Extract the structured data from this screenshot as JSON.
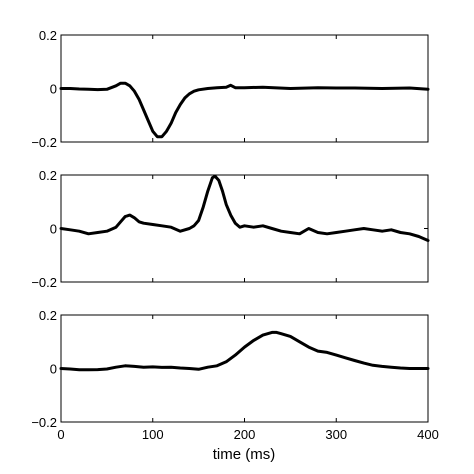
{
  "chart_data": [
    {
      "type": "line",
      "xlim": [
        0,
        400
      ],
      "ylim": [
        -0.2,
        0.2
      ],
      "yticks": [
        0.2,
        0,
        -0.2
      ],
      "ytick_labels": [
        "0.2",
        "0",
        "−0.2"
      ],
      "grid": false,
      "series": [
        {
          "x": [
            0,
            10,
            20,
            30,
            40,
            50,
            60,
            65,
            70,
            75,
            80,
            85,
            90,
            95,
            100,
            105,
            110,
            115,
            120,
            125,
            130,
            135,
            140,
            145,
            150,
            160,
            170,
            180,
            185,
            190,
            200,
            220,
            250,
            280,
            300,
            320,
            350,
            380,
            400
          ],
          "y": [
            0.0,
            0.0,
            -0.002,
            -0.003,
            -0.004,
            -0.003,
            0.01,
            0.02,
            0.02,
            0.01,
            -0.01,
            -0.04,
            -0.08,
            -0.12,
            -0.16,
            -0.18,
            -0.18,
            -0.16,
            -0.13,
            -0.09,
            -0.06,
            -0.035,
            -0.02,
            -0.01,
            -0.005,
            0.0,
            0.003,
            0.005,
            0.012,
            0.003,
            0.003,
            0.005,
            0.0,
            0.003,
            0.002,
            0.002,
            0.0,
            0.002,
            -0.003
          ]
        }
      ]
    },
    {
      "type": "line",
      "xlim": [
        0,
        400
      ],
      "ylim": [
        -0.2,
        0.2
      ],
      "yticks": [
        0.2,
        0,
        -0.2
      ],
      "ytick_labels": [
        "0.2",
        "0",
        "−0.2"
      ],
      "grid": false,
      "series": [
        {
          "x": [
            0,
            10,
            20,
            30,
            40,
            50,
            60,
            65,
            70,
            75,
            80,
            85,
            90,
            100,
            110,
            120,
            130,
            140,
            145,
            150,
            155,
            160,
            165,
            168,
            172,
            176,
            180,
            185,
            190,
            195,
            200,
            210,
            220,
            230,
            240,
            250,
            260,
            270,
            280,
            290,
            300,
            310,
            320,
            330,
            340,
            350,
            360,
            370,
            380,
            390,
            400
          ],
          "y": [
            0.0,
            -0.005,
            -0.01,
            -0.02,
            -0.015,
            -0.01,
            0.005,
            0.025,
            0.045,
            0.05,
            0.04,
            0.025,
            0.02,
            0.015,
            0.01,
            0.005,
            -0.01,
            0.0,
            0.01,
            0.03,
            0.08,
            0.14,
            0.19,
            0.195,
            0.18,
            0.14,
            0.09,
            0.05,
            0.02,
            0.005,
            0.01,
            0.005,
            0.01,
            0.0,
            -0.01,
            -0.015,
            -0.02,
            0.0,
            -0.015,
            -0.02,
            -0.015,
            -0.01,
            -0.005,
            0.0,
            -0.005,
            -0.01,
            -0.005,
            -0.015,
            -0.02,
            -0.03,
            -0.045
          ]
        }
      ]
    },
    {
      "type": "line",
      "xlim": [
        0,
        400
      ],
      "ylim": [
        -0.2,
        0.2
      ],
      "yticks": [
        0.2,
        0,
        -0.2
      ],
      "ytick_labels": [
        "0.2",
        "0",
        "−0.2"
      ],
      "xticks": [
        0,
        100,
        200,
        300,
        400
      ],
      "xtick_labels": [
        "0",
        "100",
        "200",
        "300",
        "400"
      ],
      "xlabel": "time (ms)",
      "grid": false,
      "series": [
        {
          "x": [
            0,
            10,
            20,
            30,
            40,
            50,
            60,
            70,
            80,
            90,
            100,
            110,
            120,
            130,
            140,
            150,
            160,
            170,
            180,
            190,
            200,
            210,
            220,
            230,
            235,
            240,
            250,
            260,
            270,
            280,
            290,
            300,
            310,
            320,
            330,
            340,
            350,
            360,
            370,
            380,
            390,
            400
          ],
          "y": [
            0.0,
            -0.002,
            -0.005,
            -0.005,
            -0.004,
            -0.002,
            0.005,
            0.01,
            0.008,
            0.005,
            0.006,
            0.004,
            0.005,
            0.002,
            0.0,
            -0.003,
            0.005,
            0.01,
            0.025,
            0.05,
            0.08,
            0.105,
            0.125,
            0.135,
            0.135,
            0.13,
            0.12,
            0.1,
            0.08,
            0.065,
            0.06,
            0.05,
            0.04,
            0.03,
            0.02,
            0.012,
            0.008,
            0.005,
            0.002,
            0.0,
            0.0,
            0.0
          ]
        }
      ]
    }
  ]
}
